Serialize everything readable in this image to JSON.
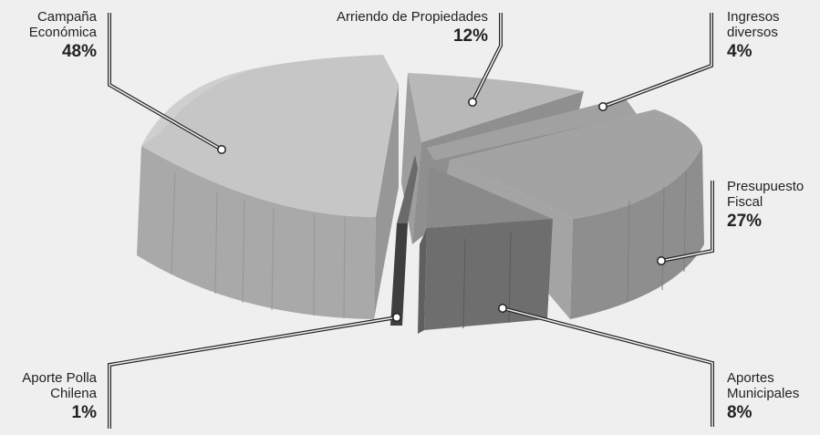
{
  "chart_data": {
    "type": "pie",
    "slices": [
      {
        "label": "Campaña Económica",
        "lines": [
          "Campaña",
          "Económica"
        ],
        "value": 48,
        "value_text": "48%",
        "color": "#c4c4c4"
      },
      {
        "label": "Arriendo de Propiedades",
        "lines": [
          "Arriendo de Propiedades"
        ],
        "value": 12,
        "value_text": "12%",
        "color": "#b4b4b4"
      },
      {
        "label": "Ingresos diversos",
        "lines": [
          "Ingresos",
          "diversos"
        ],
        "value": 4,
        "value_text": "4%",
        "color": "#a8a8a8"
      },
      {
        "label": "Presupuesto Fiscal",
        "lines": [
          "Presupuesto",
          "Fiscal"
        ],
        "value": 27,
        "value_text": "27%",
        "color": "#9c9c9c"
      },
      {
        "label": "Aportes Municipales",
        "lines": [
          "Aportes",
          "Municipales"
        ],
        "value": 8,
        "value_text": "8%",
        "color": "#7a7a7a"
      },
      {
        "label": "Aporte Polla Chilena",
        "lines": [
          "Aporte Polla",
          "Chilena"
        ],
        "value": 1,
        "value_text": "1%",
        "color": "#555555"
      }
    ]
  }
}
